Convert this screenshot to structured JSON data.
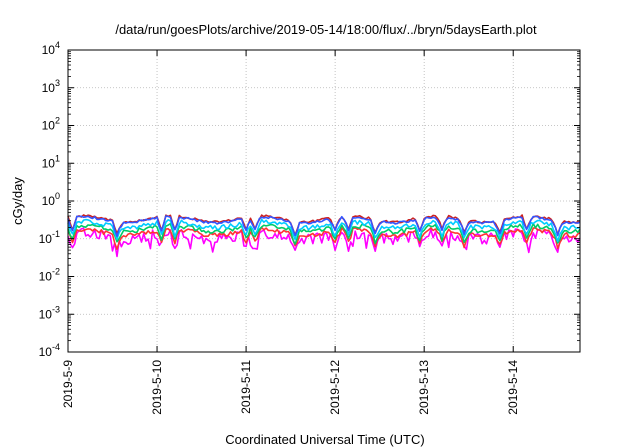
{
  "chart_data": {
    "type": "line",
    "title": "/data/run/goesPlots/archive/2019-05-14/18:00/flux/../bryn/5daysEarth.plot",
    "xlabel": "Coordinated Universal Time (UTC)",
    "ylabel": "cGy/day",
    "yscale": "log",
    "ylim": [
      0.0001,
      10000
    ],
    "xlim_days": [
      0,
      5.75
    ],
    "x_tick_labels": [
      "2019-5-9",
      "2019-5-10",
      "2019-5-11",
      "2019-5-12",
      "2019-5-13",
      "2019-5-14"
    ],
    "y_ticks": [
      {
        "value": 0.0001,
        "base": "10",
        "exp": "-4"
      },
      {
        "value": 0.001,
        "base": "10",
        "exp": "-3"
      },
      {
        "value": 0.01,
        "base": "10",
        "exp": "-2"
      },
      {
        "value": 0.1,
        "base": "10",
        "exp": "-1"
      },
      {
        "value": 1,
        "base": "10",
        "exp": "0"
      },
      {
        "value": 10,
        "base": "10",
        "exp": "1"
      },
      {
        "value": 100,
        "base": "10",
        "exp": "2"
      },
      {
        "value": 1000,
        "base": "10",
        "exp": "3"
      },
      {
        "value": 10000,
        "base": "10",
        "exp": "4"
      }
    ],
    "grid": true,
    "legend": "none",
    "series": [
      {
        "color": "#ff00ff",
        "base_value": 0.12,
        "noise": "strong"
      },
      {
        "color": "#ff3333",
        "base_value": 0.15,
        "noise": "medium"
      },
      {
        "color": "#00cc66",
        "base_value": 0.19,
        "noise": "medium"
      },
      {
        "color": "#00ccff",
        "base_value": 0.24,
        "noise": "medium"
      },
      {
        "color": "#cc2222",
        "base_value": 0.34,
        "noise": "low"
      },
      {
        "color": "#3355ff",
        "base_value": 0.32,
        "noise": "low"
      }
    ],
    "dips_days": [
      0.05,
      0.55,
      1.05,
      1.2,
      2.0,
      2.1,
      2.55,
      3.0,
      3.15,
      3.45,
      3.95,
      4.2,
      4.45,
      4.85,
      5.15,
      5.5
    ]
  }
}
